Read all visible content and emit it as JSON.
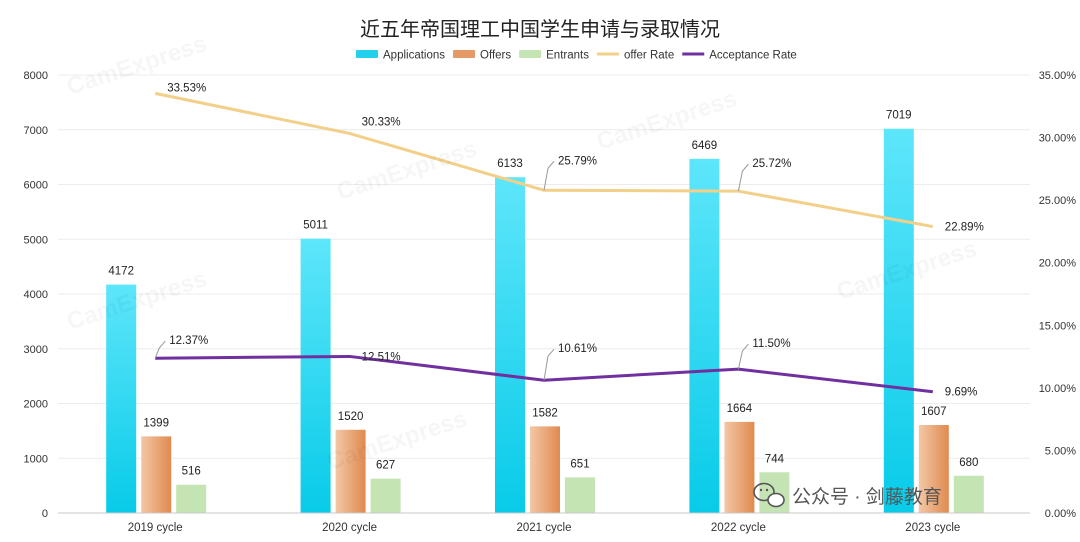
{
  "chart_data": {
    "type": "bar",
    "title": "近五年帝国理工中国学生申请与录取情况",
    "categories": [
      "2019 cycle",
      "2020 cycle",
      "2021 cycle",
      "2022 cycle",
      "2023 cycle"
    ],
    "series": [
      {
        "name": "Applications",
        "kind": "bar",
        "axis": "left",
        "color": "#22d0ee",
        "values": [
          4172,
          5011,
          6133,
          6469,
          7019
        ]
      },
      {
        "name": "Offers",
        "kind": "bar",
        "axis": "left",
        "color": "#e59a66",
        "values": [
          1399,
          1520,
          1582,
          1664,
          1607
        ]
      },
      {
        "name": "Entrants",
        "kind": "bar",
        "axis": "left",
        "color": "#c5e4b4",
        "values": [
          516,
          627,
          651,
          744,
          680
        ]
      },
      {
        "name": "offer Rate",
        "kind": "line",
        "axis": "right",
        "color": "#f2d08a",
        "values": [
          33.53,
          30.33,
          25.79,
          25.72,
          22.89
        ],
        "labels": [
          "33.53%",
          "30.33%",
          "25.79%",
          "25.72%",
          "22.89%"
        ]
      },
      {
        "name": "Acceptance Rate",
        "kind": "line",
        "axis": "right",
        "color": "#7030a0",
        "values": [
          12.37,
          12.51,
          10.61,
          11.5,
          9.69
        ],
        "labels": [
          "12.37%",
          "12.51%",
          "10.61%",
          "11.50%",
          "9.69%"
        ]
      }
    ],
    "ylim_left": [
      0,
      8000
    ],
    "yticks_left": [
      "0",
      "1000",
      "2000",
      "3000",
      "4000",
      "5000",
      "6000",
      "7000",
      "8000"
    ],
    "ylim_right": [
      0,
      35
    ],
    "yticks_right": [
      "0.00%",
      "5.00%",
      "10.00%",
      "15.00%",
      "20.00%",
      "25.00%",
      "30.00%",
      "35.00%"
    ],
    "grid": true,
    "legend_position": "top-center"
  },
  "watermark": {
    "brand": "CamExpress",
    "icon": "wechat-icon",
    "text": "公众号 · 剑藤教育"
  }
}
